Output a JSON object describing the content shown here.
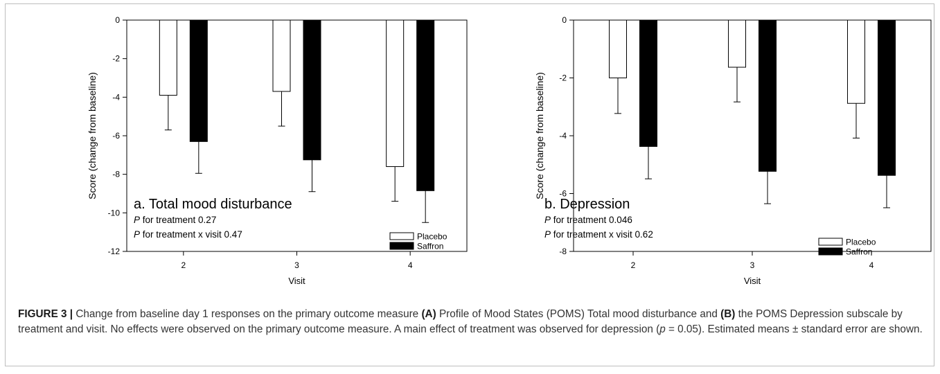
{
  "chart_data": [
    {
      "type": "bar",
      "panel_label": "a. Total mood disturbance",
      "stat_lines": [
        {
          "italic": "P",
          "text": " for treatment 0.27"
        },
        {
          "italic": "P",
          "text": " for treatment x visit 0.47"
        }
      ],
      "xlabel": "Visit",
      "ylabel": "Score (change from baseline)",
      "ylim": [
        -12,
        0
      ],
      "yticks": [
        0,
        -2,
        -4,
        -6,
        -8,
        -10,
        -12
      ],
      "categories": [
        "2",
        "3",
        "4"
      ],
      "series": [
        {
          "name": "Placebo",
          "values": [
            -3.9,
            -3.7,
            -7.6
          ],
          "errors": [
            1.8,
            1.8,
            1.8
          ],
          "fill": "#ffffff"
        },
        {
          "name": "Saffron",
          "values": [
            -6.3,
            -7.25,
            -8.85
          ],
          "errors": [
            1.65,
            1.65,
            1.65
          ],
          "fill": "#000000"
        }
      ],
      "legend_position": "bottom-right"
    },
    {
      "type": "bar",
      "panel_label": "b. Depression",
      "stat_lines": [
        {
          "italic": "P",
          "text": " for treatment 0.046"
        },
        {
          "italic": "P",
          "text": " for treatment x visit 0.62"
        }
      ],
      "xlabel": "Visit",
      "ylabel": "Score (change from baseline)",
      "ylim": [
        -8,
        0
      ],
      "yticks": [
        0,
        -2,
        -4,
        -6,
        -8
      ],
      "categories": [
        "2",
        "3",
        "4"
      ],
      "series": [
        {
          "name": "Placebo",
          "values": [
            -2.0,
            -1.63,
            -2.88
          ],
          "errors": [
            1.23,
            1.2,
            1.2
          ],
          "fill": "#ffffff"
        },
        {
          "name": "Saffron",
          "values": [
            -4.37,
            -5.23,
            -5.37
          ],
          "errors": [
            1.12,
            1.12,
            1.12
          ],
          "fill": "#000000"
        }
      ],
      "legend_position": "bottom-right"
    }
  ],
  "caption": {
    "label": "FIGURE 3 |",
    "parts": [
      {
        "bold": false,
        "text": " Change from baseline day 1 responses on the primary outcome measure "
      },
      {
        "bold": true,
        "text": "(A)"
      },
      {
        "bold": false,
        "text": " Profile of Mood States (POMS) Total mood disturbance and "
      },
      {
        "bold": true,
        "text": "(B)"
      },
      {
        "bold": false,
        "text": " the POMS Depression subscale by treatment and visit. No effects were observed on the primary outcome measure. A main effect of treatment was observed for depression ("
      },
      {
        "italic": true,
        "text": "p"
      },
      {
        "bold": false,
        "text": " = 0.05). Estimated means ± standard error are shown."
      }
    ]
  }
}
